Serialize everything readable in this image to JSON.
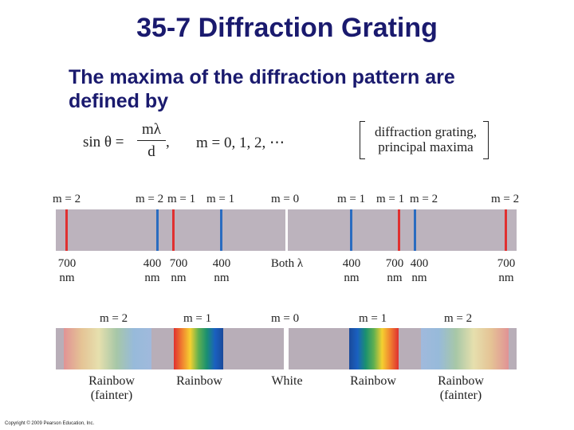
{
  "title": "35-7 Diffraction Grating",
  "subtitle": "The maxima of the diffraction pattern are defined by",
  "equation": {
    "lhs": "sin θ  =",
    "numerator": "mλ",
    "denominator": "d",
    "comma": ",",
    "condition": "m  =  0, 1, 2, ⋯",
    "bracket_line1": "diffraction grating,",
    "bracket_line2": "principal maxima"
  },
  "figure_a": {
    "order_labels": [
      "m = 2",
      "m = 2",
      "m = 1",
      "m = 1",
      "m = 0",
      "m = 1",
      "m = 1",
      "m = 2",
      "m = 2"
    ],
    "lines": [
      {
        "color": "#e03030"
      },
      {
        "color": "#2a6cc0"
      },
      {
        "color": "#e03030"
      },
      {
        "color": "#2a6cc0"
      },
      {
        "color": "#ffffff"
      },
      {
        "color": "#2a6cc0"
      },
      {
        "color": "#e03030"
      },
      {
        "color": "#2a6cc0"
      },
      {
        "color": "#e03030"
      }
    ],
    "wavelength_labels": [
      {
        "top": "700",
        "bottom": "nm"
      },
      {
        "top": "400",
        "bottom": "nm"
      },
      {
        "top": "700",
        "bottom": "nm"
      },
      {
        "top": "400",
        "bottom": "nm"
      },
      {
        "top": "Both λ",
        "bottom": ""
      },
      {
        "top": "400",
        "bottom": "nm"
      },
      {
        "top": "700",
        "bottom": "nm"
      },
      {
        "top": "400",
        "bottom": "nm"
      },
      {
        "top": "700",
        "bottom": "nm"
      }
    ]
  },
  "figure_b": {
    "order_labels": [
      "m = 2",
      "m = 1",
      "m = 0",
      "m = 1",
      "m = 2"
    ],
    "bottom_labels": [
      {
        "line1": "Rainbow",
        "line2": "(fainter)"
      },
      {
        "line1": "Rainbow",
        "line2": ""
      },
      {
        "line1": "White",
        "line2": ""
      },
      {
        "line1": "Rainbow",
        "line2": ""
      },
      {
        "line1": "Rainbow",
        "line2": "(fainter)"
      }
    ]
  },
  "copyright": "Copyright © 2009 Pearson Education, Inc."
}
